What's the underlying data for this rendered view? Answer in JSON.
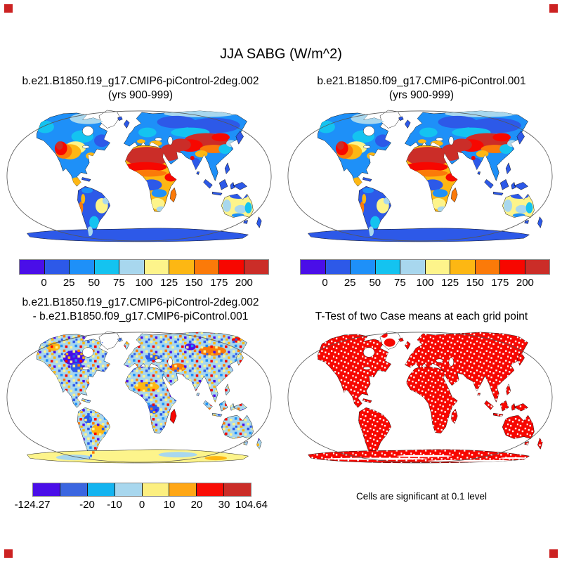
{
  "figure": {
    "title": "JJA SABG (W/m^2)"
  },
  "panels": [
    {
      "name": "top-left",
      "title_lines": [
        "b.e21.B1850.f19_g17.CMIP6-piControl-2deg.002",
        "(yrs 900-999)"
      ],
      "map_type": "field",
      "colorbar": {
        "colors": [
          "#4a0ee8",
          "#2d59e8",
          "#1e90f8",
          "#14c3f0",
          "#a8d7ee",
          "#fdf48b",
          "#fdb713",
          "#fb7a09",
          "#f70700",
          "#cb2d28"
        ],
        "ticks": [
          {
            "label": "0",
            "edge": 1
          },
          {
            "label": "25",
            "edge": 2
          },
          {
            "label": "50",
            "edge": 3
          },
          {
            "label": "75",
            "edge": 4
          },
          {
            "label": "100",
            "edge": 5
          },
          {
            "label": "125",
            "edge": 6
          },
          {
            "label": "150",
            "edge": 7
          },
          {
            "label": "175",
            "edge": 8
          },
          {
            "label": "200",
            "edge": 9
          }
        ]
      }
    },
    {
      "name": "top-right",
      "title_lines": [
        "b.e21.B1850.f09_g17.CMIP6-piControl.001",
        "(yrs 900-999)"
      ],
      "map_type": "field",
      "colorbar": {
        "colors": [
          "#4a0ee8",
          "#2d59e8",
          "#1e90f8",
          "#14c3f0",
          "#a8d7ee",
          "#fdf48b",
          "#fdb713",
          "#fb7a09",
          "#f70700",
          "#cb2d28"
        ],
        "ticks": [
          {
            "label": "0",
            "edge": 1
          },
          {
            "label": "25",
            "edge": 2
          },
          {
            "label": "50",
            "edge": 3
          },
          {
            "label": "75",
            "edge": 4
          },
          {
            "label": "100",
            "edge": 5
          },
          {
            "label": "125",
            "edge": 6
          },
          {
            "label": "150",
            "edge": 7
          },
          {
            "label": "175",
            "edge": 8
          },
          {
            "label": "200",
            "edge": 9
          }
        ]
      }
    },
    {
      "name": "bottom-left",
      "title_lines": [
        "b.e21.B1850.f19_g17.CMIP6-piControl-2deg.002",
        "- b.e21.B1850.f09_g17.CMIP6-piControl.001"
      ],
      "map_type": "diff",
      "colorbar": {
        "colors": [
          "#4a0ee8",
          "#3b66e0",
          "#14b4f0",
          "#a8d7ee",
          "#fcef80",
          "#ffa716",
          "#f90d05",
          "#cb2d28"
        ],
        "ticks": [
          {
            "label": "-124.27",
            "edge": 0
          },
          {
            "label": "-20",
            "edge": 2
          },
          {
            "label": "-10",
            "edge": 3
          },
          {
            "label": "0",
            "edge": 4
          },
          {
            "label": "10",
            "edge": 5
          },
          {
            "label": "20",
            "edge": 6
          },
          {
            "label": "30",
            "edge": 7
          },
          {
            "label": "104.64",
            "edge": 8
          }
        ]
      }
    },
    {
      "name": "bottom-right",
      "title_lines": [
        "T-Test of two Case means at each grid point"
      ],
      "map_type": "ttest",
      "caption": "Cells are significant at 0.1 level"
    }
  ],
  "palette": {
    "blueviolet": "#4a0ee8",
    "royal": "#2d59e8",
    "dodger": "#1e90f8",
    "cyan": "#14c3f0",
    "lightblue": "#a8d7ee",
    "lightyellow": "#fdf48b",
    "gold": "#fdb713",
    "orange": "#fb7a09",
    "red": "#f70700",
    "darkred": "#cb2d28",
    "white": "#ffffff",
    "coastline": "#000000",
    "map_outline": "#555555"
  },
  "corner_markers": {
    "color": "#cc2222"
  }
}
